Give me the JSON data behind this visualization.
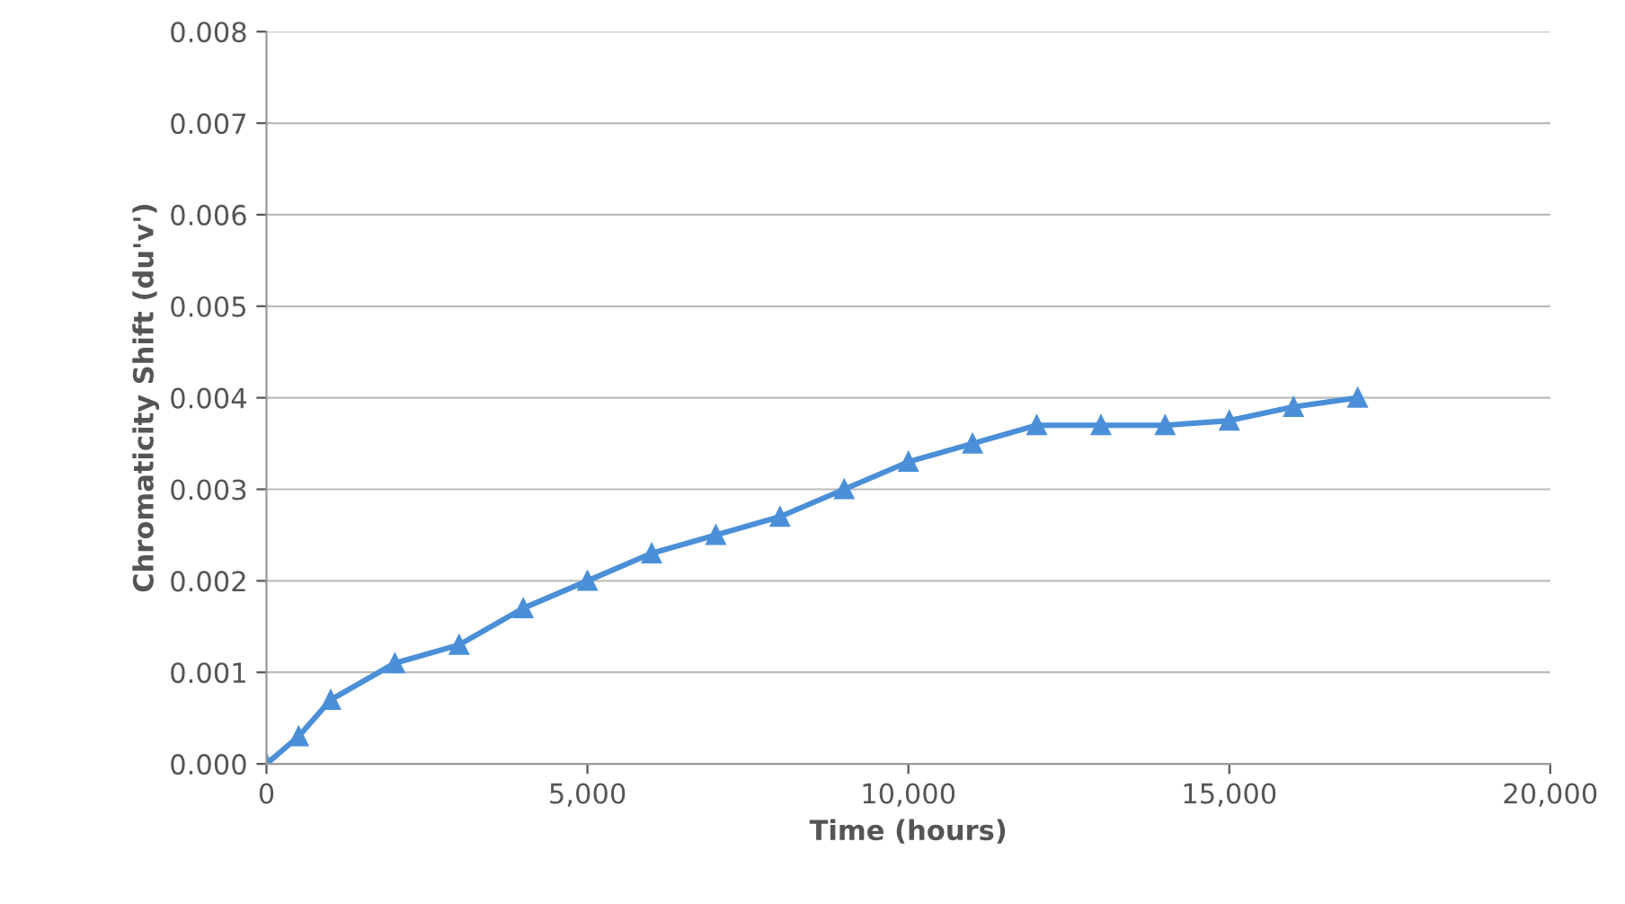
{
  "chart_data": {
    "type": "line",
    "xlabel": "Time (hours)",
    "ylabel": "Chromaticity Shift (du'v')",
    "x": [
      0,
      500,
      1000,
      2000,
      3000,
      4000,
      5000,
      6000,
      7000,
      8000,
      9000,
      10000,
      11000,
      12000,
      13000,
      14000,
      15000,
      16000,
      17000
    ],
    "series": [
      {
        "color": "#4a8fd8",
        "values": [
          0,
          0.0003,
          0.0007,
          0.0011,
          0.0013,
          0.0017,
          0.002,
          0.0023,
          0.0025,
          0.0027,
          0.003,
          0.0033,
          0.0035,
          0.0037,
          0.0037,
          0.0037,
          0.00375,
          0.0039,
          0.004
        ]
      }
    ],
    "xlim": [
      0,
      20000
    ],
    "xticks": [
      {
        "value": 0,
        "label": "0"
      },
      {
        "value": 5000,
        "label": "5,000"
      },
      {
        "value": 10000,
        "label": "10,000"
      },
      {
        "value": 15000,
        "label": "15,000"
      },
      {
        "value": 20000,
        "label": "20,000"
      }
    ],
    "ylim": [
      0,
      0.008
    ],
    "yticks": [
      {
        "value": 0,
        "label": "0.000"
      },
      {
        "value": 0.001,
        "label": "0.001"
      },
      {
        "value": 0.002,
        "label": "0.002"
      },
      {
        "value": 0.003,
        "label": "0.003"
      },
      {
        "value": 0.004,
        "label": "0.004"
      },
      {
        "value": 0.005,
        "label": "0.005"
      },
      {
        "value": 0.006,
        "label": "0.006"
      },
      {
        "value": 0.007,
        "label": "0.007"
      },
      {
        "value": 0.008,
        "label": "0.008"
      }
    ],
    "grid": "y",
    "marker": "triangle",
    "line_style": "solid"
  }
}
